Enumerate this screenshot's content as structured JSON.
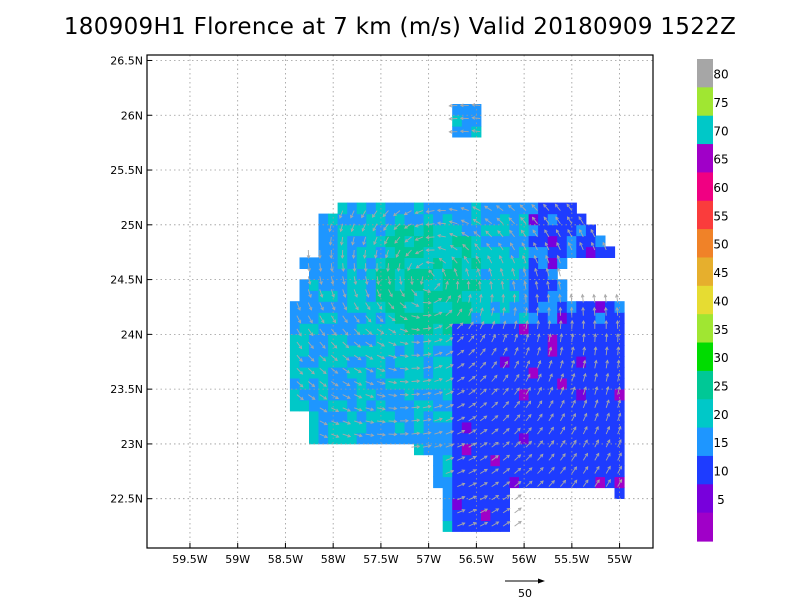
{
  "title": "180909H1 Florence at 7 km (m/s) Valid 20180909  1522Z",
  "map": {
    "lon_ticks": [
      "59.5W",
      "59W",
      "58.5W",
      "58W",
      "57.5W",
      "57W",
      "56.5W",
      "56W",
      "55.5W",
      "55W"
    ],
    "lat_ticks": [
      "26.5N",
      "26N",
      "25.5N",
      "25N",
      "24.5N",
      "24N",
      "23.5N",
      "23N",
      "22.5N"
    ],
    "grid": true,
    "lon_range": [
      -59.95,
      -54.65
    ],
    "lat_range": [
      22.05,
      26.55
    ]
  },
  "colorbar": {
    "labels": [
      "80",
      "75",
      "70",
      "65",
      "60",
      "55",
      "50",
      "45",
      "40",
      "35",
      "30",
      "25",
      "20",
      "15",
      "10",
      "5"
    ],
    "colors": [
      "#a6a6a6",
      "#a0e632",
      "#00c8c8",
      "#a000c8",
      "#f00082",
      "#fa3c3c",
      "#f08228",
      "#e6af2d",
      "#e6dc32",
      "#a0e632",
      "#00dc00",
      "#00c896",
      "#00c8c8",
      "#1e96ff",
      "#1e3cff",
      "#7800dc",
      "#a000c8"
    ]
  },
  "reference_vector": {
    "label": "50"
  },
  "wind_field": {
    "center": {
      "lat": 24.5,
      "lon": -57.0
    },
    "speed_classes": {
      "5-10": "#a000c8",
      "10-15": "#7800dc",
      "15-20": "#1e3cff",
      "20-25": "#1e96ff",
      "25-30": "#00c8c8",
      "30-35": "#00c896"
    }
  }
}
